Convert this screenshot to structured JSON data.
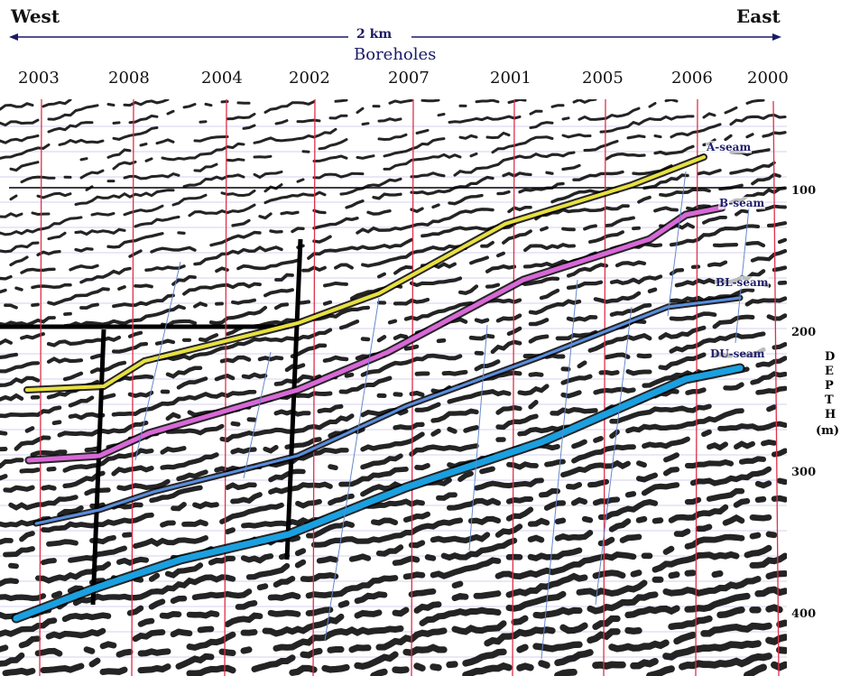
{
  "header": {
    "west": "West",
    "east": "East",
    "scale": "2 km",
    "boreholes_title": "Boreholes"
  },
  "boreholes": [
    "2003",
    "2008",
    "2004",
    "2002",
    "2007",
    "2001",
    "2005",
    "2006",
    "2000"
  ],
  "seams": [
    "A-seam",
    "B-seam",
    "BL-seam",
    "DU-seam"
  ],
  "depth_ticks": [
    "100",
    "200",
    "300",
    "400"
  ],
  "depth_label_letters": [
    "D",
    "E",
    "P",
    "T",
    "H"
  ],
  "depth_unit": "(m)",
  "colors": {
    "borehole_line": "#e0304a",
    "a_seam": "#e8e040",
    "b_seam": "#d868d8",
    "bl_seam": "#5a8ee0",
    "du_seam": "#1aa0e0",
    "scale_arrow": "#1a1a66"
  }
}
